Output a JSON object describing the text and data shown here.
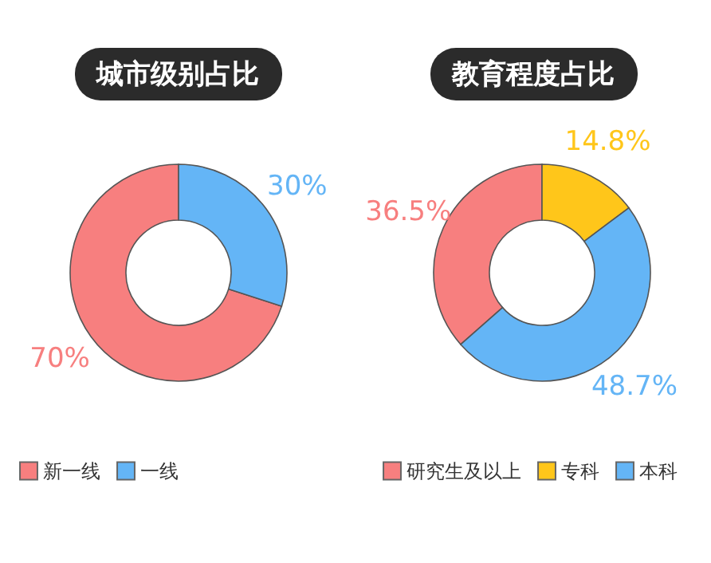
{
  "chart_data": [
    {
      "type": "donut",
      "title": "城市级别占比",
      "categories": [
        "新一线",
        "一线"
      ],
      "values": [
        70,
        30
      ],
      "colors": [
        "#f77f7f",
        "#64b5f6"
      ],
      "value_labels": [
        "70%",
        "30%"
      ],
      "legend": "bottom"
    },
    {
      "type": "donut",
      "title": "教育程度占比",
      "categories": [
        "研究生及以上",
        "专科",
        "本科"
      ],
      "values": [
        36.5,
        14.8,
        48.7
      ],
      "colors": [
        "#f77f7f",
        "#ffc61a",
        "#64b5f6"
      ],
      "value_labels": [
        "36.5%",
        "14.8%",
        "48.7%"
      ],
      "legend": "bottom"
    }
  ]
}
